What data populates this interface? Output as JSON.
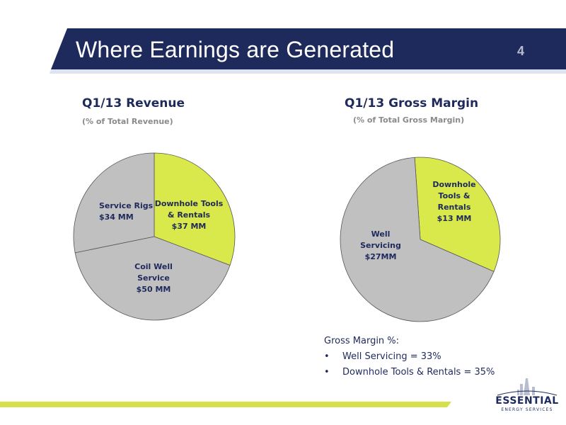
{
  "slide": {
    "title": "Where Earnings are Generated",
    "page_number": "4"
  },
  "colors": {
    "navy": "#1f2a5c",
    "grey_slice": "#c0c0c0",
    "green_slice": "#d9e84a",
    "footer_green": "#d6e04a"
  },
  "chart_data": [
    {
      "type": "pie",
      "title": "Q1/13 Revenue",
      "subtitle": "(% of Total Revenue)",
      "slices": [
        {
          "name_lines": [
            "Downhole Tools",
            "& Rentals"
          ],
          "value_label": "$37 MM",
          "value": 37,
          "color": "#d9e84a"
        },
        {
          "name_lines": [
            "Coil Well",
            "Service"
          ],
          "value_label": "$50 MM",
          "value": 50,
          "color": "#c0c0c0"
        },
        {
          "name_lines": [
            "Service Rigs"
          ],
          "value_label": "$34 MM",
          "value": 34,
          "color": "#c0c0c0"
        }
      ]
    },
    {
      "type": "pie",
      "title": "Q1/13 Gross Margin",
      "subtitle": "(% of Total Gross Margin)",
      "slices": [
        {
          "name_lines": [
            "Downhole",
            "Tools &",
            "Rentals"
          ],
          "value_label": "$13 MM",
          "value": 13,
          "color": "#d9e84a"
        },
        {
          "name_lines": [
            "Well",
            "Servicing"
          ],
          "value_label": "$27MM",
          "value": 27,
          "color": "#c0c0c0"
        }
      ]
    }
  ],
  "notes": {
    "heading": "Gross Margin %:",
    "bullet": "•",
    "items": [
      "Well Servicing = 33%",
      "Downhole Tools & Rentals =  35%"
    ]
  },
  "logo": {
    "name": "ESSENTIAL",
    "tagline": "ENERGY SERVICES",
    "icon": "oil-derrick-icon"
  }
}
